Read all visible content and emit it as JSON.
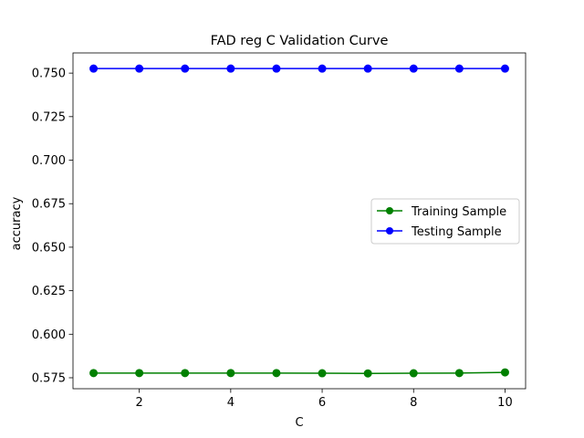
{
  "chart_data": {
    "type": "line",
    "title": "FAD reg C Validation Curve",
    "xlabel": "C",
    "ylabel": "accuracy",
    "x": [
      1,
      2,
      3,
      4,
      5,
      6,
      7,
      8,
      9,
      10
    ],
    "xlim": [
      0.55,
      10.45
    ],
    "ylim": [
      0.5687,
      0.7616
    ],
    "xticks": [
      2,
      4,
      6,
      8,
      10
    ],
    "yticks": [
      0.575,
      0.6,
      0.625,
      0.65,
      0.675,
      0.7,
      0.725,
      0.75
    ],
    "ytick_labels": [
      "0.575",
      "0.600",
      "0.625",
      "0.650",
      "0.675",
      "0.700",
      "0.725",
      "0.750"
    ],
    "grid": false,
    "legend_position": "center-right",
    "series": [
      {
        "name": "Training Sample",
        "color": "#008000",
        "marker": "circle",
        "values": [
          0.5777,
          0.5777,
          0.5777,
          0.5777,
          0.5777,
          0.5776,
          0.5775,
          0.5776,
          0.5777,
          0.5781
        ]
      },
      {
        "name": "Testing Sample",
        "color": "#0000ff",
        "marker": "circle",
        "values": [
          0.7526,
          0.7526,
          0.7526,
          0.7526,
          0.7526,
          0.7526,
          0.7526,
          0.7526,
          0.7526,
          0.7526
        ]
      }
    ]
  }
}
